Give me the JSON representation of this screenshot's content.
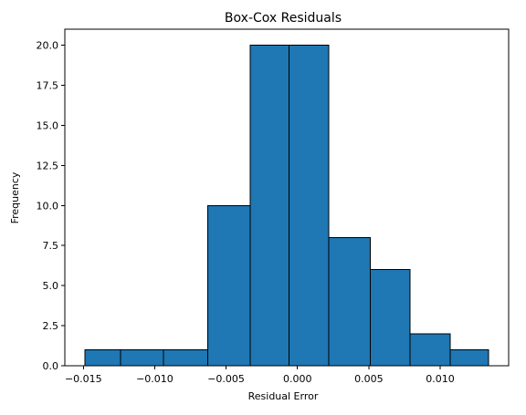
{
  "chart_data": {
    "type": "bar",
    "title": "Box-Cox Residuals",
    "xlabel": "Residual Error",
    "ylabel": "Frequency",
    "xlim": [
      -0.0163,
      0.0148
    ],
    "ylim": [
      0,
      21
    ],
    "x_ticks": [
      -0.015,
      -0.01,
      -0.005,
      0.0,
      0.005,
      0.01
    ],
    "x_tick_labels": [
      "−0.015",
      "−0.010",
      "−0.005",
      "0.000",
      "0.005",
      "0.010"
    ],
    "y_ticks": [
      0,
      2.5,
      5,
      7.5,
      10,
      12.5,
      15,
      17.5,
      20
    ],
    "y_tick_labels": [
      "0.0",
      "2.5",
      "5.0",
      "7.5",
      "10.0",
      "12.5",
      "15.0",
      "17.5",
      "20.0"
    ],
    "bins": [
      {
        "start": -0.0149,
        "end": -0.0124,
        "count": 1
      },
      {
        "start": -0.0124,
        "end": -0.0094,
        "count": 1
      },
      {
        "start": -0.0094,
        "end": -0.0063,
        "count": 1
      },
      {
        "start": -0.0063,
        "end": -0.0033,
        "count": 10
      },
      {
        "start": -0.0033,
        "end": -0.0006,
        "count": 20
      },
      {
        "start": -0.0006,
        "end": 0.0022,
        "count": 20
      },
      {
        "start": 0.0022,
        "end": 0.0051,
        "count": 8
      },
      {
        "start": 0.0051,
        "end": 0.0079,
        "count": 6
      },
      {
        "start": 0.0079,
        "end": 0.0107,
        "count": 2
      },
      {
        "start": 0.0107,
        "end": 0.0134,
        "count": 1
      }
    ],
    "bar_color": "#1f77b4",
    "edge_color": "#000000",
    "grid": false
  }
}
